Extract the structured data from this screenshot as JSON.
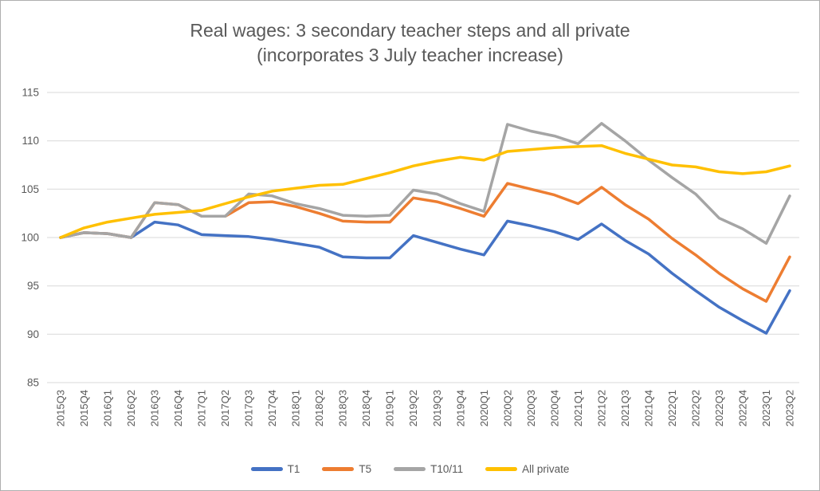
{
  "chart": {
    "title_line1": "Real wages: 3 secondary teacher steps and all private",
    "title_line2": "(incorporates 3 July teacher increase)"
  },
  "chart_data": {
    "type": "line",
    "title": "Real wages: 3 secondary teacher steps and all private (incorporates 3 July teacher increase)",
    "xlabel": "",
    "ylabel": "",
    "ylim": [
      85,
      115
    ],
    "y_ticks": [
      85,
      90,
      95,
      100,
      105,
      110,
      115
    ],
    "grid": true,
    "legend_position": "bottom",
    "categories": [
      "2015Q3",
      "2015Q4",
      "2016Q1",
      "2016Q2",
      "2016Q3",
      "2016Q4",
      "2017Q1",
      "2017Q2",
      "2017Q3",
      "2017Q4",
      "2018Q1",
      "2018Q2",
      "2018Q3",
      "2018Q4",
      "2019Q1",
      "2019Q2",
      "2019Q3",
      "2019Q4",
      "2020Q1",
      "2020Q2",
      "2020Q3",
      "2020Q4",
      "2021Q1",
      "2021Q2",
      "2021Q3",
      "2021Q4",
      "2022Q1",
      "2022Q2",
      "2022Q3",
      "2022Q4",
      "2023Q1",
      "2023Q2"
    ],
    "series": [
      {
        "name": "T1",
        "color": "#4472C4",
        "values": [
          100,
          100.5,
          100.4,
          100,
          101.6,
          101.3,
          100.3,
          100.2,
          100.1,
          99.8,
          99.4,
          99,
          98,
          97.9,
          97.9,
          100.2,
          99.5,
          98.8,
          98.2,
          101.7,
          101.2,
          100.6,
          99.8,
          101.4,
          99.7,
          98.3,
          96.3,
          94.5,
          92.8,
          91.4,
          90.1,
          94.5
        ]
      },
      {
        "name": "T5",
        "color": "#ED7D31",
        "values": [
          100,
          100.5,
          100.4,
          100,
          103.6,
          103.4,
          102.2,
          102.2,
          103.6,
          103.7,
          103.2,
          102.5,
          101.7,
          101.6,
          101.6,
          104.1,
          103.7,
          103,
          102.2,
          105.6,
          105,
          104.4,
          103.5,
          105.2,
          103.4,
          101.9,
          99.9,
          98.2,
          96.3,
          94.7,
          93.4,
          98
        ]
      },
      {
        "name": "T10/11",
        "color": "#A5A5A5",
        "values": [
          100,
          100.5,
          100.4,
          100,
          103.6,
          103.4,
          102.2,
          102.2,
          104.5,
          104.3,
          103.5,
          103,
          102.3,
          102.2,
          102.3,
          104.9,
          104.5,
          103.5,
          102.7,
          111.7,
          111,
          110.5,
          109.7,
          111.8,
          110,
          108,
          106.2,
          104.5,
          102,
          100.9,
          99.4,
          104.3
        ]
      },
      {
        "name": "All private",
        "color": "#FFC000",
        "values": [
          100,
          101,
          101.6,
          102,
          102.4,
          102.6,
          102.8,
          103.5,
          104.2,
          104.8,
          105.1,
          105.4,
          105.5,
          106.1,
          106.7,
          107.4,
          107.9,
          108.3,
          108,
          108.9,
          109.1,
          109.3,
          109.4,
          109.5,
          108.7,
          108.1,
          107.5,
          107.3,
          106.8,
          106.6,
          106.8,
          107.4
        ]
      }
    ]
  },
  "colors": {
    "title_text": "#595959",
    "axis_text": "#595959",
    "gridline": "#D9D9D9",
    "background": "#FFFFFF",
    "frame_border": "#AEAEAE"
  }
}
